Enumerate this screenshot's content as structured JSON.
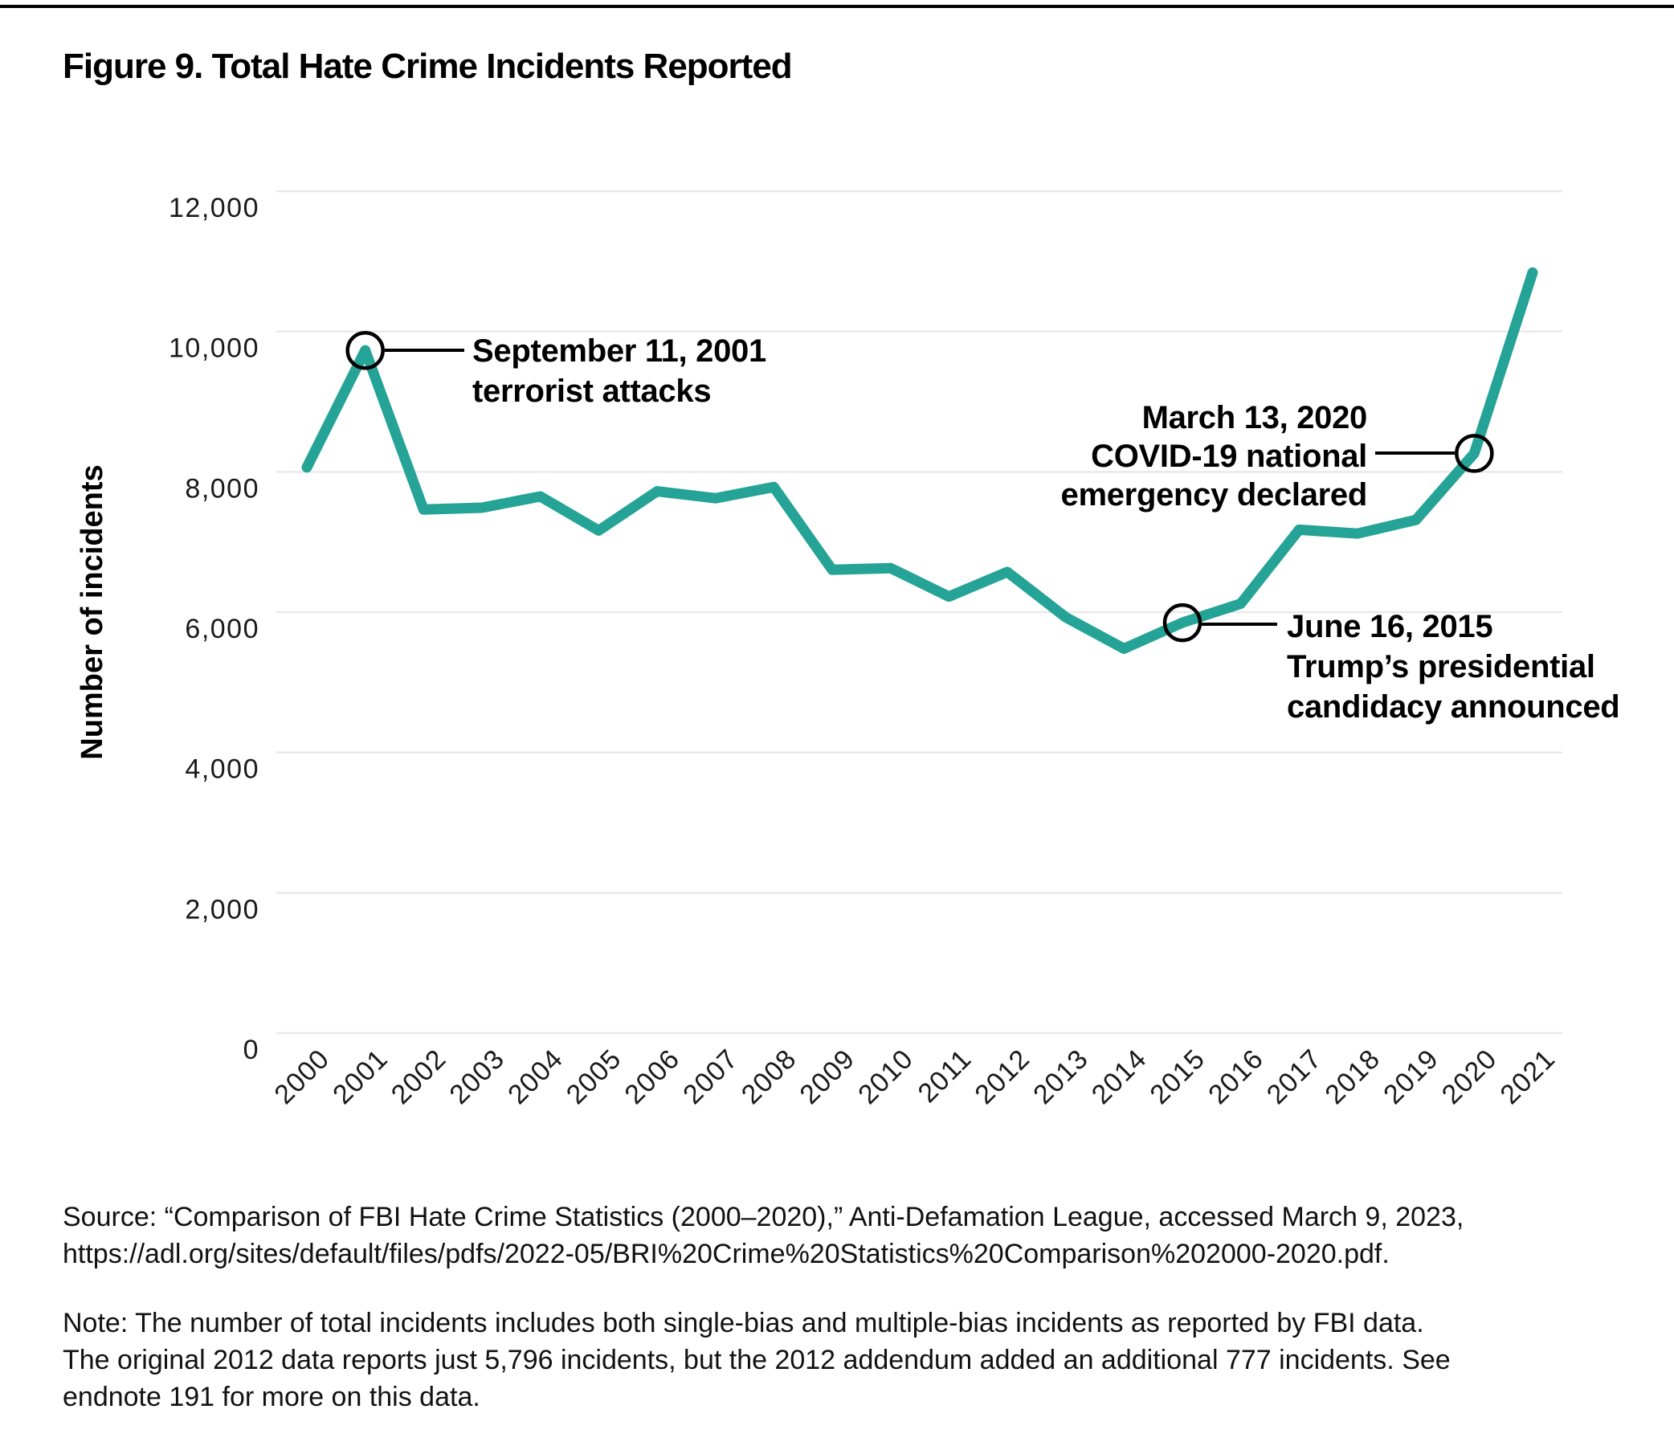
{
  "page": {
    "title": "Figure 9. Total Hate Crime Incidents Reported"
  },
  "chart_data": {
    "type": "line",
    "title": "Figure 9. Total Hate Crime Incidents Reported",
    "xlabel": "",
    "ylabel": "Number of incidents",
    "series_name": "Total hate crime incidents reported",
    "categories": [
      "2000",
      "2001",
      "2002",
      "2003",
      "2004",
      "2005",
      "2006",
      "2007",
      "2008",
      "2009",
      "2010",
      "2011",
      "2012",
      "2013",
      "2014",
      "2015",
      "2016",
      "2017",
      "2018",
      "2019",
      "2020",
      "2021"
    ],
    "values": [
      8063,
      9730,
      7462,
      7489,
      7649,
      7163,
      7722,
      7624,
      7783,
      6604,
      6628,
      6222,
      6573,
      5928,
      5479,
      5850,
      6121,
      7175,
      7120,
      7314,
      8263,
      10840
    ],
    "ylim": [
      0,
      12000
    ],
    "yticks": [
      {
        "value": 0,
        "label": "0"
      },
      {
        "value": 2000,
        "label": "2,000"
      },
      {
        "value": 4000,
        "label": "4,000"
      },
      {
        "value": 6000,
        "label": "6,000"
      },
      {
        "value": 8000,
        "label": "8,000"
      },
      {
        "value": 10000,
        "label": "10,000"
      },
      {
        "value": 12000,
        "label": "12,000"
      }
    ],
    "grid": "horizontal light-gray gridlines, no vertical grid, no legend",
    "line_color": "#24a396",
    "gridline_color": "#e9e9e9",
    "annotation_color": "#000000",
    "annotations": [
      {
        "year": "2001",
        "lines": [
          "September 11, 2001",
          "terrorist attacks"
        ],
        "align": "start",
        "text_x": 588,
        "text_y": 450,
        "line_height": 50,
        "connector": [
          479,
          436,
          578,
          436
        ]
      },
      {
        "year": "2015",
        "lines": [
          "June 16, 2015",
          "Trump’s presidential",
          "candidacy announced"
        ],
        "align": "start",
        "text_x": 1602,
        "text_y": 793,
        "line_height": 50,
        "connector": [
          1495,
          777,
          1590,
          777
        ]
      },
      {
        "year": "2020",
        "lines": [
          "March 13, 2020",
          "COVID-19 national",
          "emergency declared"
        ],
        "align": "end",
        "text_x": 1702,
        "text_y": 533,
        "line_height": 48,
        "connector": [
          1811,
          564,
          1712,
          564
        ]
      }
    ]
  },
  "source": {
    "lines": [
      "Source: “Comparison of FBI Hate Crime Statistics (2000–2020),” Anti-Defamation League, accessed March 9, 2023,",
      "https://adl.org/sites/default/files/pdfs/2022-05/BRI%20Crime%20Statistics%20Comparison%202000-2020.pdf."
    ]
  },
  "note": {
    "lines": [
      "Note: The number of total incidents includes both single-bias and multiple-bias incidents as reported by FBI data.",
      "The original 2012 data reports just 5,796 incidents, but the 2012 addendum added an additional 777 incidents. See",
      "endnote 191 for more on this data."
    ]
  }
}
